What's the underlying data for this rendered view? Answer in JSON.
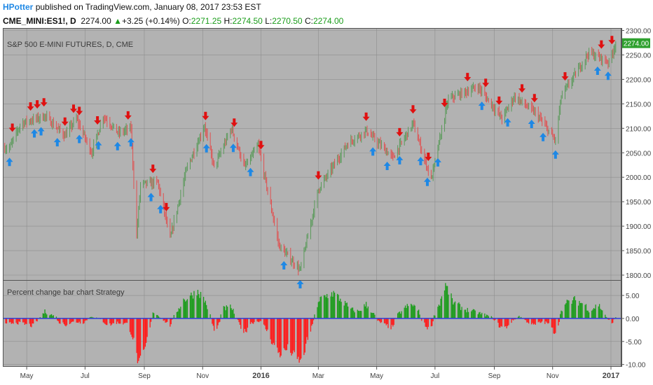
{
  "header": {
    "author": "HPotter",
    "published": "published on TradingView.com, January 08, 2017 23:53 EST",
    "symbol": "CME_MINI:ES1!, D",
    "last": "2274.00",
    "change_arrow": "▲",
    "change": "+3.25 (+0.14%)",
    "o_label": "O:",
    "o": "2271.25",
    "h_label": "H:",
    "h": "2274.50",
    "l_label": "L:",
    "l": "2270.50",
    "c_label": "C:",
    "c": "2274.00"
  },
  "colors": {
    "background": "#b2b2b2",
    "up": "#1a9c1a",
    "down": "#ff1a1a",
    "candle_up": "#5a9a5a",
    "candle_down": "#e05050",
    "zero_line": "#2d3dd8",
    "buy_arrow": "#1e88e5",
    "sell_arrow": "#e01010",
    "price_tag": "#2ea02e"
  },
  "chart_data": [
    {
      "type": "candlestick",
      "title": "S&P 500 E-MINI FUTURES, D, CME",
      "ylim": [
        1790,
        2305
      ],
      "y_ticks": [
        "1800.00",
        "1850.00",
        "1900.00",
        "1950.00",
        "2000.00",
        "2050.00",
        "2100.00",
        "2150.00",
        "2200.00",
        "2250.00",
        "2300.00"
      ],
      "last_price_label": "2274.00",
      "x_labels": [
        "May",
        "Jul",
        "Sep",
        "Nov",
        "2016",
        "Mar",
        "May",
        "Jul",
        "Sep",
        "Nov",
        "2017"
      ],
      "close_path": [
        {
          "date": "2015-04-13",
          "close": 2060
        },
        {
          "date": "2015-04-25",
          "close": 2110
        },
        {
          "date": "2015-05-20",
          "close": 2125
        },
        {
          "date": "2015-06-10",
          "close": 2085
        },
        {
          "date": "2015-06-22",
          "close": 2120
        },
        {
          "date": "2015-07-08",
          "close": 2050
        },
        {
          "date": "2015-07-20",
          "close": 2125
        },
        {
          "date": "2015-08-05",
          "close": 2090
        },
        {
          "date": "2015-08-18",
          "close": 2100
        },
        {
          "date": "2015-08-24",
          "close": 1880
        },
        {
          "date": "2015-08-28",
          "close": 1985
        },
        {
          "date": "2015-09-15",
          "close": 1990
        },
        {
          "date": "2015-09-28",
          "close": 1875
        },
        {
          "date": "2015-10-15",
          "close": 2015
        },
        {
          "date": "2015-11-03",
          "close": 2105
        },
        {
          "date": "2015-11-13",
          "close": 2020
        },
        {
          "date": "2015-12-01",
          "close": 2100
        },
        {
          "date": "2015-12-15",
          "close": 2020
        },
        {
          "date": "2015-12-29",
          "close": 2065
        },
        {
          "date": "2016-01-20",
          "close": 1860
        },
        {
          "date": "2016-02-11",
          "close": 1810
        },
        {
          "date": "2016-03-01",
          "close": 1975
        },
        {
          "date": "2016-04-01",
          "close": 2070
        },
        {
          "date": "2016-04-20",
          "close": 2095
        },
        {
          "date": "2016-05-18",
          "close": 2040
        },
        {
          "date": "2016-06-08",
          "close": 2110
        },
        {
          "date": "2016-06-27",
          "close": 1995
        },
        {
          "date": "2016-07-15",
          "close": 2160
        },
        {
          "date": "2016-08-15",
          "close": 2185
        },
        {
          "date": "2016-09-09",
          "close": 2120
        },
        {
          "date": "2016-09-22",
          "close": 2165
        },
        {
          "date": "2016-10-15",
          "close": 2130
        },
        {
          "date": "2016-11-04",
          "close": 2075
        },
        {
          "date": "2016-11-10",
          "close": 2165
        },
        {
          "date": "2016-12-09",
          "close": 2255
        },
        {
          "date": "2016-12-30",
          "close": 2235
        },
        {
          "date": "2017-01-06",
          "close": 2274
        }
      ],
      "sell_signal_dates": [
        "2015-04-16",
        "2015-05-05",
        "2015-05-12",
        "2015-05-19",
        "2015-06-10",
        "2015-06-19",
        "2015-06-25",
        "2015-07-14",
        "2015-08-15",
        "2015-09-10",
        "2015-09-24",
        "2015-11-04",
        "2015-12-04",
        "2016-01-01",
        "2016-03-01",
        "2016-04-20",
        "2016-05-25",
        "2016-06-08",
        "2016-06-24",
        "2016-07-11",
        "2016-08-04",
        "2016-08-23",
        "2016-09-06",
        "2016-09-30",
        "2016-10-13",
        "2016-11-14",
        "2016-12-22",
        "2017-01-02"
      ],
      "buy_signal_dates": [
        "2015-04-13",
        "2015-05-09",
        "2015-05-16",
        "2015-06-02",
        "2015-06-25",
        "2015-07-15",
        "2015-08-04",
        "2015-08-18",
        "2015-09-08",
        "2015-09-18",
        "2015-11-05",
        "2015-12-03",
        "2015-12-21",
        "2016-01-25",
        "2016-02-11",
        "2016-04-27",
        "2016-05-12",
        "2016-05-25",
        "2016-06-16",
        "2016-06-23",
        "2016-07-04",
        "2016-08-19",
        "2016-09-15",
        "2016-10-10",
        "2016-10-22",
        "2016-11-04",
        "2016-12-18",
        "2016-12-29"
      ]
    },
    {
      "type": "bar",
      "title": "Percent change bar chart Strategy",
      "ylim": [
        -10.5,
        8.2
      ],
      "y_ticks": [
        "5.00",
        "0.00",
        "-5.00",
        "-10.00"
      ],
      "series": [
        {
          "key": "pct_change",
          "x": "date",
          "y": "percent"
        }
      ],
      "keypoints": [
        {
          "date": "2015-04-09",
          "v": -1.5
        },
        {
          "date": "2015-04-18",
          "v": -0.8
        },
        {
          "date": "2015-05-08",
          "v": -1.6
        },
        {
          "date": "2015-05-13",
          "v": -0.2
        },
        {
          "date": "2015-05-20",
          "v": 1.5
        },
        {
          "date": "2015-06-01",
          "v": 0.3
        },
        {
          "date": "2015-06-03",
          "v": -0.8
        },
        {
          "date": "2015-06-11",
          "v": -1.3
        },
        {
          "date": "2015-06-20",
          "v": -0.7
        },
        {
          "date": "2015-06-29",
          "v": -0.9
        },
        {
          "date": "2015-07-08",
          "v": 0.5
        },
        {
          "date": "2015-07-18",
          "v": -0.3
        },
        {
          "date": "2015-07-25",
          "v": -1.5
        },
        {
          "date": "2015-08-03",
          "v": -0.9
        },
        {
          "date": "2015-08-15",
          "v": -1.2
        },
        {
          "date": "2015-08-20",
          "v": -4.0
        },
        {
          "date": "2015-08-26",
          "v": -10.0
        },
        {
          "date": "2015-09-02",
          "v": -6.5
        },
        {
          "date": "2015-09-08",
          "v": -1.0
        },
        {
          "date": "2015-09-10",
          "v": 1.5
        },
        {
          "date": "2015-09-17",
          "v": 0.4
        },
        {
          "date": "2015-09-20",
          "v": -0.2
        },
        {
          "date": "2015-09-28",
          "v": -1.5
        },
        {
          "date": "2015-10-02",
          "v": 0.5
        },
        {
          "date": "2015-10-12",
          "v": 4.0
        },
        {
          "date": "2015-10-20",
          "v": 5.0
        },
        {
          "date": "2015-10-27",
          "v": 6.0
        },
        {
          "date": "2015-11-03",
          "v": 4.0
        },
        {
          "date": "2015-11-08",
          "v": 1.5
        },
        {
          "date": "2015-11-14",
          "v": -3.5
        },
        {
          "date": "2015-11-19",
          "v": -0.5
        },
        {
          "date": "2015-11-21",
          "v": 2.0
        },
        {
          "date": "2015-12-01",
          "v": 2.5
        },
        {
          "date": "2015-12-10",
          "v": -1.5
        },
        {
          "date": "2015-12-15",
          "v": -3.0
        },
        {
          "date": "2015-12-21",
          "v": -1.0
        },
        {
          "date": "2015-12-31",
          "v": -0.5
        },
        {
          "date": "2016-01-07",
          "v": -2.5
        },
        {
          "date": "2016-01-15",
          "v": -6.0
        },
        {
          "date": "2016-01-21",
          "v": -7.8
        },
        {
          "date": "2016-01-29",
          "v": -6.5
        },
        {
          "date": "2016-02-08",
          "v": -8.8
        },
        {
          "date": "2016-02-13",
          "v": -9.5
        },
        {
          "date": "2016-02-18",
          "v": -5.0
        },
        {
          "date": "2016-02-24",
          "v": -1.5
        },
        {
          "date": "2016-02-26",
          "v": 1.0
        },
        {
          "date": "2016-03-04",
          "v": 4.5
        },
        {
          "date": "2016-03-10",
          "v": 5.0
        },
        {
          "date": "2016-03-17",
          "v": 5.5
        },
        {
          "date": "2016-03-25",
          "v": 4.0
        },
        {
          "date": "2016-04-04",
          "v": 2.0
        },
        {
          "date": "2016-04-12",
          "v": 1.5
        },
        {
          "date": "2016-04-20",
          "v": 3.0
        },
        {
          "date": "2016-04-28",
          "v": 1.0
        },
        {
          "date": "2016-05-02",
          "v": -0.5
        },
        {
          "date": "2016-05-10",
          "v": -1.5
        },
        {
          "date": "2016-05-18",
          "v": -2.0
        },
        {
          "date": "2016-05-21",
          "v": 0.5
        },
        {
          "date": "2016-06-01",
          "v": 2.5
        },
        {
          "date": "2016-06-08",
          "v": 3.0
        },
        {
          "date": "2016-06-14",
          "v": 1.5
        },
        {
          "date": "2016-06-17",
          "v": -0.5
        },
        {
          "date": "2016-06-22",
          "v": -1.8
        },
        {
          "date": "2016-06-27",
          "v": -2.2
        },
        {
          "date": "2016-06-30",
          "v": 0.5
        },
        {
          "date": "2016-07-06",
          "v": 3.5
        },
        {
          "date": "2016-07-12",
          "v": 7.3
        },
        {
          "date": "2016-07-20",
          "v": 3.5
        },
        {
          "date": "2016-08-01",
          "v": 2.0
        },
        {
          "date": "2016-08-11",
          "v": 1.5
        },
        {
          "date": "2016-08-22",
          "v": 0.8
        },
        {
          "date": "2016-08-29",
          "v": 0.3
        },
        {
          "date": "2016-09-02",
          "v": -0.5
        },
        {
          "date": "2016-09-07",
          "v": -1.8
        },
        {
          "date": "2016-09-13",
          "v": -2.0
        },
        {
          "date": "2016-09-20",
          "v": -0.5
        },
        {
          "date": "2016-09-27",
          "v": 0.5
        },
        {
          "date": "2016-10-04",
          "v": -0.5
        },
        {
          "date": "2016-10-12",
          "v": -1.5
        },
        {
          "date": "2016-10-20",
          "v": -0.8
        },
        {
          "date": "2016-10-27",
          "v": -1.0
        },
        {
          "date": "2016-11-01",
          "v": -2.5
        },
        {
          "date": "2016-11-05",
          "v": -3.0
        },
        {
          "date": "2016-11-08",
          "v": -0.5
        },
        {
          "date": "2016-11-10",
          "v": 2.0
        },
        {
          "date": "2016-11-17",
          "v": 3.5
        },
        {
          "date": "2016-11-25",
          "v": 4.0
        },
        {
          "date": "2016-12-05",
          "v": 3.0
        },
        {
          "date": "2016-12-10",
          "v": 1.5
        },
        {
          "date": "2016-12-15",
          "v": 2.5
        },
        {
          "date": "2016-12-19",
          "v": 3.0
        },
        {
          "date": "2016-12-24",
          "v": 1.5
        },
        {
          "date": "2016-12-29",
          "v": -0.3
        },
        {
          "date": "2017-01-02",
          "v": -1.0
        },
        {
          "date": "2017-01-06",
          "v": 0.3
        }
      ]
    }
  ]
}
